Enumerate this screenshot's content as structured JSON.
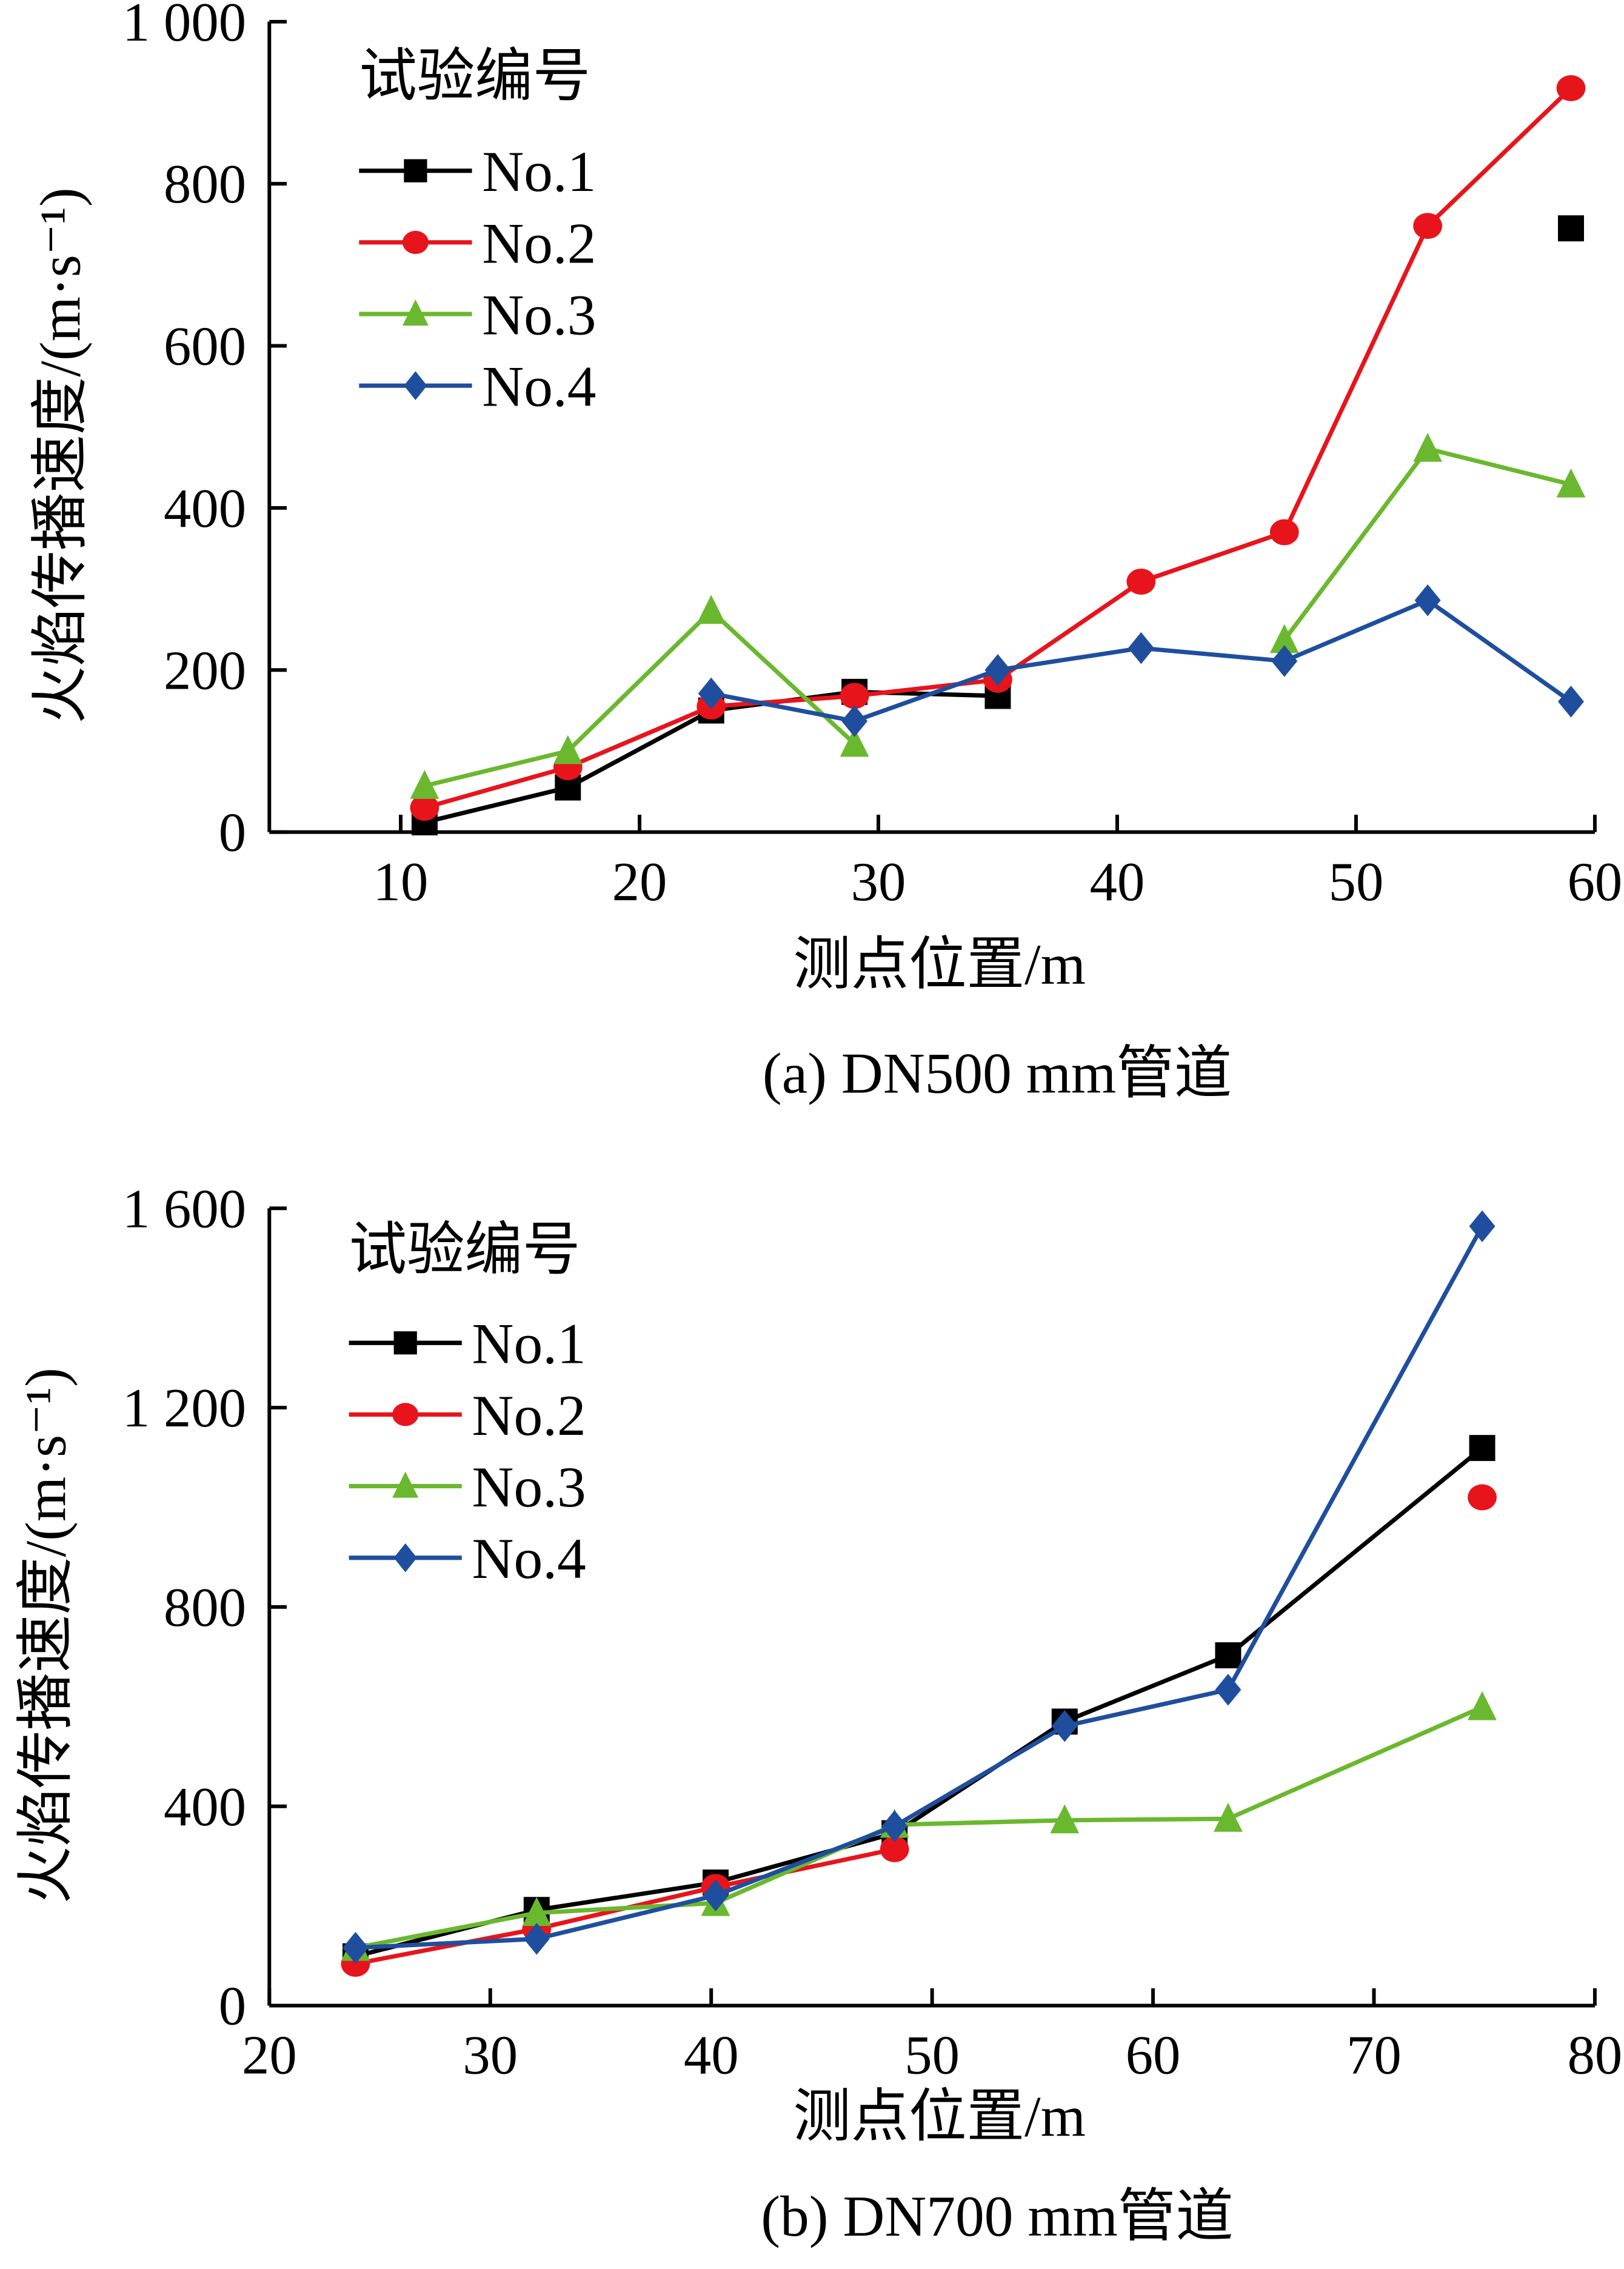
{
  "chart_data": [
    {
      "type": "line",
      "caption": "(a) DN500 mm管道",
      "xlabel": "测点位置/m",
      "ylabel": "火焰传播速度/(m·s⁻¹)",
      "xlim": [
        4.5,
        60
      ],
      "ylim": [
        0,
        1000
      ],
      "xticks": [
        "10",
        "20",
        "30",
        "40",
        "50",
        "60"
      ],
      "yticks": [
        "0",
        "200",
        "400",
        "600",
        "800",
        "1 000"
      ],
      "legend_title": "试验编号",
      "legend_position": "top-left",
      "x": [
        11,
        17,
        23,
        29,
        35,
        41,
        47,
        53,
        59
      ],
      "series": [
        {
          "name": "No.1",
          "color": "#000000",
          "marker": "square",
          "values": [
            12,
            55,
            150,
            173,
            168,
            null,
            null,
            null,
            745
          ]
        },
        {
          "name": "No.2",
          "color": "#e8141c",
          "marker": "circle",
          "values": [
            30,
            80,
            155,
            168,
            188,
            309,
            370,
            748,
            918
          ]
        },
        {
          "name": "No.3",
          "color": "#6ab82e",
          "marker": "triangle",
          "values": [
            57,
            100,
            273,
            109,
            null,
            null,
            237,
            473,
            429
          ]
        },
        {
          "name": "No.4",
          "color": "#1f4e9e",
          "marker": "diamond",
          "values": [
            null,
            null,
            171,
            137,
            200,
            227,
            211,
            286,
            161
          ]
        }
      ]
    },
    {
      "type": "line",
      "caption": "(b) DN700 mm管道",
      "xlabel": "测点位置/m",
      "ylabel": "火焰传播速度/(m·s⁻¹)",
      "xlim": [
        20,
        80
      ],
      "ylim": [
        0,
        1600
      ],
      "xticks": [
        "20",
        "30",
        "40",
        "50",
        "60",
        "70",
        "80"
      ],
      "yticks": [
        "0",
        "400",
        "800",
        "1 200",
        "1 600"
      ],
      "legend_title": "试验编号",
      "legend_position": "top-left",
      "x": [
        23.9,
        32.1,
        40.2,
        48.3,
        56,
        63.4,
        74.9
      ],
      "series": [
        {
          "name": "No.1",
          "color": "#000000",
          "marker": "square",
          "values": [
            99,
            192,
            247,
            346,
            570,
            703,
            1119
          ]
        },
        {
          "name": "No.2",
          "color": "#e8141c",
          "marker": "circle",
          "values": [
            84,
            154,
            238,
            314,
            null,
            null,
            1020
          ]
        },
        {
          "name": "No.3",
          "color": "#6ab82e",
          "marker": "triangle",
          "values": [
            116,
            186,
            206,
            363,
            372,
            375,
            599
          ]
        },
        {
          "name": "No.4",
          "color": "#1f4e9e",
          "marker": "diamond",
          "values": [
            116,
            134,
            221,
            360,
            561,
            634,
            1564
          ]
        }
      ]
    }
  ]
}
